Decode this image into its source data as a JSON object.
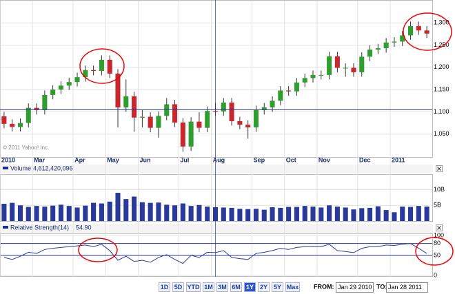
{
  "chart_data": [
    {
      "type": "candlestick",
      "copyright": "© 2011 Yahoo! Inc.",
      "categories": [
        "2010",
        null,
        null,
        null,
        "Mar",
        null,
        null,
        null,
        null,
        "Apr",
        null,
        null,
        null,
        "May",
        null,
        null,
        null,
        "Jun",
        null,
        null,
        null,
        null,
        "Jul",
        null,
        null,
        null,
        "Aug",
        null,
        null,
        null,
        null,
        "Sep",
        null,
        null,
        null,
        "Oct",
        null,
        null,
        null,
        "Nov",
        null,
        null,
        null,
        null,
        "Dec",
        null,
        null,
        null,
        "2011",
        null,
        null,
        null,
        null
      ],
      "open": [
        1090,
        1073,
        1066,
        1075,
        1109,
        1104,
        1138,
        1150,
        1159,
        1167,
        1178,
        1194,
        1192,
        1217,
        1186,
        1110,
        1135,
        1087,
        1089,
        1064,
        1091,
        1117,
        1076,
        1022,
        1078,
        1064,
        1102,
        1101,
        1121,
        1079,
        1071,
        1065,
        1104,
        1110,
        1125,
        1148,
        1146,
        1166,
        1176,
        1183,
        1183,
        1225,
        1199,
        1199,
        1189,
        1224,
        1240,
        1243,
        1256,
        1258,
        1272,
        1293,
        1283
      ],
      "high": [
        1100,
        1083,
        1085,
        1119,
        1119,
        1148,
        1160,
        1169,
        1177,
        1188,
        1204,
        1204,
        1227,
        1227,
        1196,
        1173,
        1145,
        1105,
        1099,
        1101,
        1131,
        1127,
        1086,
        1088,
        1099,
        1112,
        1120,
        1131,
        1131,
        1089,
        1081,
        1114,
        1120,
        1135,
        1158,
        1158,
        1176,
        1186,
        1193,
        1193,
        1235,
        1235,
        1209,
        1209,
        1234,
        1250,
        1253,
        1266,
        1268,
        1282,
        1303,
        1303,
        1293
      ],
      "low": [
        1063,
        1056,
        1056,
        1065,
        1094,
        1094,
        1128,
        1140,
        1149,
        1157,
        1168,
        1182,
        1182,
        1176,
        1065,
        1100,
        1055,
        1065,
        1054,
        1042,
        1081,
        1066,
        1010,
        1012,
        1054,
        1054,
        1091,
        1091,
        1069,
        1061,
        1040,
        1055,
        1094,
        1100,
        1115,
        1136,
        1136,
        1156,
        1166,
        1173,
        1173,
        1189,
        1179,
        1179,
        1179,
        1214,
        1230,
        1233,
        1246,
        1248,
        1262,
        1273,
        1266
      ],
      "close": [
        1073,
        1066,
        1075,
        1109,
        1104,
        1138,
        1150,
        1159,
        1167,
        1178,
        1194,
        1192,
        1217,
        1186,
        1110,
        1135,
        1087,
        1089,
        1064,
        1091,
        1117,
        1076,
        1022,
        1078,
        1064,
        1102,
        1101,
        1121,
        1079,
        1071,
        1065,
        1104,
        1110,
        1125,
        1148,
        1146,
        1166,
        1176,
        1183,
        1183,
        1225,
        1199,
        1199,
        1189,
        1224,
        1240,
        1243,
        1256,
        1258,
        1272,
        1293,
        1283,
        1276
      ],
      "up_color": "#2f9e2f",
      "down_color": "#c8272d",
      "wick_color": "#333333",
      "ylim": [
        1000,
        1350
      ],
      "yticks": [
        {
          "value": 1050,
          "label": "1,050"
        },
        {
          "value": 1100,
          "label": "1,100"
        },
        {
          "value": 1150,
          "label": "1,150"
        },
        {
          "value": 1200,
          "label": "1,200"
        },
        {
          "value": 1250,
          "label": "1,250"
        },
        {
          "value": 1300,
          "label": "1,300"
        }
      ],
      "grid": true
    },
    {
      "type": "bar",
      "legend": "Volume",
      "legend_value": "4,612,420,096",
      "values": [
        5500000000.0,
        5800000000.0,
        5000000000.0,
        4500000000.0,
        4800000000.0,
        4600000000.0,
        4900000000.0,
        5200000000.0,
        4800000000.0,
        4300000000.0,
        4900000000.0,
        5800000000.0,
        5600000000.0,
        6200000000.0,
        9000000000.0,
        7000000000.0,
        7800000000.0,
        6000000000.0,
        5800000000.0,
        5900000000.0,
        5200000000.0,
        5000000000.0,
        5600000000.0,
        4800000000.0,
        5100000000.0,
        4600000000.0,
        4400000000.0,
        4300000000.0,
        4200000000.0,
        3900000000.0,
        3800000000.0,
        3900000000.0,
        3600000000.0,
        4400000000.0,
        4200000000.0,
        4500000000.0,
        4500000000.0,
        4800000000.0,
        4600000000.0,
        4300000000.0,
        5000000000.0,
        4600000000.0,
        4300000000.0,
        3700000000.0,
        4100000000.0,
        4200000000.0,
        4700000000.0,
        3500000000.0,
        2800000000.0,
        4600000000.0,
        4500000000.0,
        4800000000.0,
        4612420096
      ],
      "color": "#2a3a9a",
      "ylim": [
        0,
        14500000000
      ],
      "yticks": [
        {
          "value": 5000000000,
          "label": "5B"
        },
        {
          "value": 10000000000,
          "label": "10B"
        }
      ],
      "grid": true
    },
    {
      "type": "line",
      "legend": "Relative Strength(14)",
      "legend_value": "54.90",
      "values": [
        45,
        40,
        48,
        58,
        55,
        65,
        68,
        70,
        72,
        74,
        76,
        72,
        78,
        62,
        38,
        48,
        35,
        38,
        33,
        45,
        52,
        40,
        30,
        50,
        45,
        58,
        57,
        62,
        45,
        42,
        40,
        55,
        58,
        62,
        68,
        65,
        70,
        72,
        73,
        72,
        78,
        62,
        60,
        57,
        68,
        72,
        72,
        76,
        75,
        78,
        80,
        68,
        54.9
      ],
      "color": "#2a3a9a",
      "ylim": [
        0,
        100
      ],
      "yticks": [
        0,
        50,
        80,
        100
      ],
      "grid": true
    }
  ],
  "controls": {
    "ranges": [
      "1D",
      "5D",
      "YTD",
      "1M",
      "3M",
      "6M",
      "1Y",
      "2Y",
      "5Y",
      "Max"
    ],
    "selected": "1Y",
    "from_label": "FROM:",
    "from": "Jan 29 2010",
    "to_label": "TO:",
    "to": "Jan 28 2011"
  }
}
